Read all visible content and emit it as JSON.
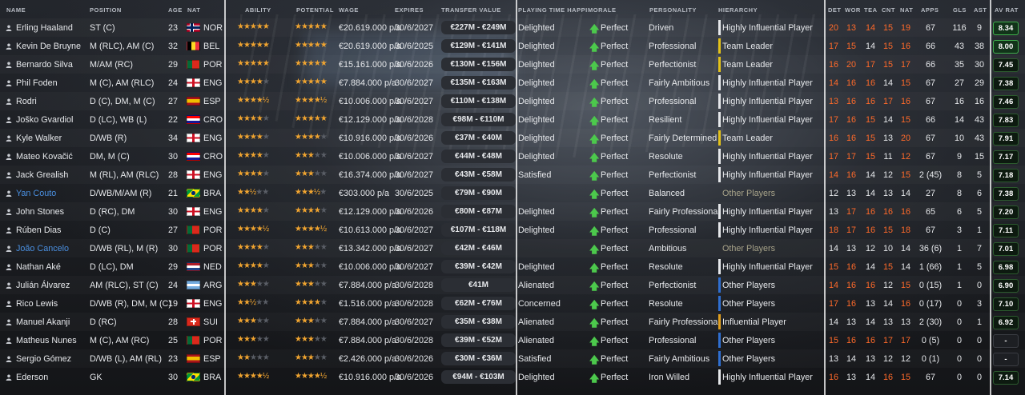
{
  "columns": {
    "name": "NAME",
    "position": "POSITION",
    "age": "AGE",
    "nat": "NAT",
    "ability": "ABILITY",
    "potential": "POTENTIAL",
    "wage": "WAGE",
    "expires": "EXPIRES",
    "transfer_value": "TRANSFER VALUE",
    "playing_time": "PLAYING TIME HAPPI",
    "morale": "MORALE",
    "personality": "PERSONALITY",
    "hierarchy": "HIERARCHY",
    "det": "DET",
    "wor": "WOR",
    "tea": "TEA",
    "cnt": "CNT",
    "nat2": "NAT",
    "apps": "APPS",
    "gls": "GLS",
    "ast": "AST",
    "av_rat": "AV RAT"
  },
  "colors": {
    "accent_star": "#f0a430",
    "attr_high": "#ff6a2a",
    "loan_name": "#4a8fe0",
    "morale_up": "#4cc94c",
    "hier_leader": "#e3c21a",
    "hier_influential": "#e6e8eb",
    "hier_other": "#2f6fd1",
    "hier_fringe": "#e0a020"
  },
  "players": [
    {
      "name": "Erling Haaland",
      "pos": "ST (C)",
      "age": "23",
      "flag": "nor",
      "nat": "NOR",
      "ab": "★★★★★",
      "ab_dim": "",
      "pot": "★★★★★",
      "pot_dim": "",
      "wage": "€20.619.000 p/a",
      "expires": "30/6/2027",
      "tv": "€227M - €249M",
      "pt": "Delighted",
      "morale": "Perfect",
      "personality": "Driven",
      "hier": "Highly Influential Player",
      "hcol": "#e6e8eb",
      "hdim": false,
      "det": "20",
      "wor": "13",
      "tea": "14",
      "cnt": "15",
      "nat2": "19",
      "det_r": true,
      "wor_r": true,
      "tea_r": true,
      "cnt_r": true,
      "nat_r": true,
      "apps": "67",
      "gls": "116",
      "ast": "9",
      "rat": "8.34",
      "hot": true,
      "loan": false
    },
    {
      "name": "Kevin De Bruyne",
      "pos": "M (RLC), AM (C)",
      "age": "32",
      "flag": "bel",
      "nat": "BEL",
      "ab": "★★★★★",
      "ab_dim": "",
      "pot": "★★★★★",
      "pot_dim": "",
      "wage": "€20.619.000 p/a",
      "expires": "30/6/2025",
      "tv": "€129M - €141M",
      "pt": "Delighted",
      "morale": "Perfect",
      "personality": "Professional",
      "hier": "Team Leader",
      "hcol": "#e3c21a",
      "hdim": false,
      "det": "17",
      "wor": "15",
      "tea": "14",
      "cnt": "15",
      "nat2": "16",
      "det_r": true,
      "wor_r": true,
      "tea_r": false,
      "cnt_r": true,
      "nat_r": true,
      "apps": "66",
      "gls": "43",
      "ast": "38",
      "rat": "8.00",
      "hot": true,
      "loan": false
    },
    {
      "name": "Bernardo Silva",
      "pos": "M/AM (RC)",
      "age": "29",
      "flag": "por",
      "nat": "POR",
      "ab": "★★★★★",
      "ab_dim": "",
      "pot": "★★★★★",
      "pot_dim": "",
      "wage": "€15.161.000 p/a",
      "expires": "30/6/2026",
      "tv": "€130M - €156M",
      "pt": "Delighted",
      "morale": "Perfect",
      "personality": "Perfectionist",
      "hier": "Team Leader",
      "hcol": "#e3c21a",
      "hdim": false,
      "det": "16",
      "wor": "20",
      "tea": "17",
      "cnt": "15",
      "nat2": "17",
      "det_r": true,
      "wor_r": true,
      "tea_r": true,
      "cnt_r": true,
      "nat_r": true,
      "apps": "66",
      "gls": "35",
      "ast": "30",
      "rat": "7.45",
      "hot": false,
      "loan": false
    },
    {
      "name": "Phil Foden",
      "pos": "M (C), AM (RLC)",
      "age": "24",
      "flag": "eng",
      "nat": "ENG",
      "ab": "★★★★",
      "ab_dim": "★",
      "pot": "★★★★★",
      "pot_dim": "",
      "wage": "€7.884.000 p/a",
      "expires": "30/6/2027",
      "tv": "€135M - €163M",
      "pt": "Delighted",
      "morale": "Perfect",
      "personality": "Fairly Ambitious",
      "hier": "Highly Influential Player",
      "hcol": "#e6e8eb",
      "hdim": false,
      "det": "14",
      "wor": "16",
      "tea": "16",
      "cnt": "14",
      "nat2": "15",
      "det_r": true,
      "wor_r": true,
      "tea_r": true,
      "cnt_r": false,
      "nat_r": true,
      "apps": "67",
      "gls": "27",
      "ast": "29",
      "rat": "7.38",
      "hot": false,
      "loan": false
    },
    {
      "name": "Rodri",
      "pos": "D (C), DM, M (C)",
      "age": "27",
      "flag": "esp",
      "nat": "ESP",
      "ab": "★★★★½",
      "ab_dim": "",
      "pot": "★★★★½",
      "pot_dim": "",
      "wage": "€10.006.000 p/a",
      "expires": "30/6/2027",
      "tv": "€110M - €138M",
      "pt": "Delighted",
      "morale": "Perfect",
      "personality": "Professional",
      "hier": "Highly Influential Player",
      "hcol": "#e6e8eb",
      "hdim": false,
      "det": "13",
      "wor": "16",
      "tea": "16",
      "cnt": "17",
      "nat2": "16",
      "det_r": true,
      "wor_r": true,
      "tea_r": true,
      "cnt_r": true,
      "nat_r": true,
      "apps": "67",
      "gls": "16",
      "ast": "16",
      "rat": "7.46",
      "hot": false,
      "loan": false
    },
    {
      "name": "Joško Gvardiol",
      "pos": "D (LC), WB (L)",
      "age": "22",
      "flag": "cro",
      "nat": "CRO",
      "ab": "★★★★",
      "ab_dim": "★",
      "pot": "★★★★★",
      "pot_dim": "",
      "wage": "€12.129.000 p/a",
      "expires": "30/6/2028",
      "tv": "€98M - €110M",
      "pt": "Delighted",
      "morale": "Perfect",
      "personality": "Resilient",
      "hier": "Highly Influential Player",
      "hcol": "#e6e8eb",
      "hdim": false,
      "det": "17",
      "wor": "16",
      "tea": "15",
      "cnt": "14",
      "nat2": "15",
      "det_r": true,
      "wor_r": true,
      "tea_r": true,
      "cnt_r": false,
      "nat_r": true,
      "apps": "66",
      "gls": "14",
      "ast": "43",
      "rat": "7.83",
      "hot": false,
      "loan": false
    },
    {
      "name": "Kyle Walker",
      "pos": "D/WB (R)",
      "age": "34",
      "flag": "eng",
      "nat": "ENG",
      "ab": "★★★★",
      "ab_dim": "★",
      "pot": "★★★★",
      "pot_dim": "★",
      "wage": "€10.916.000 p/a",
      "expires": "30/6/2026",
      "tv": "€37M - €40M",
      "pt": "Delighted",
      "morale": "Perfect",
      "personality": "Fairly Determined",
      "hier": "Team Leader",
      "hcol": "#e3c21a",
      "hdim": false,
      "det": "16",
      "wor": "16",
      "tea": "15",
      "cnt": "13",
      "nat2": "20",
      "det_r": true,
      "wor_r": true,
      "tea_r": true,
      "cnt_r": false,
      "nat_r": true,
      "apps": "67",
      "gls": "10",
      "ast": "43",
      "rat": "7.91",
      "hot": false,
      "loan": false
    },
    {
      "name": "Mateo Kovačić",
      "pos": "DM, M (C)",
      "age": "30",
      "flag": "cro",
      "nat": "CRO",
      "ab": "★★★★",
      "ab_dim": "★",
      "pot": "★★★",
      "pot_dim": "★★",
      "wage": "€10.006.000 p/a",
      "expires": "30/6/2027",
      "tv": "€44M - €48M",
      "pt": "Delighted",
      "morale": "Perfect",
      "personality": "Resolute",
      "hier": "Highly Influential Player",
      "hcol": "#e6e8eb",
      "hdim": false,
      "det": "17",
      "wor": "17",
      "tea": "15",
      "cnt": "11",
      "nat2": "12",
      "det_r": true,
      "wor_r": true,
      "tea_r": true,
      "cnt_r": false,
      "nat_r": true,
      "apps": "67",
      "gls": "9",
      "ast": "15",
      "rat": "7.17",
      "hot": false,
      "loan": false
    },
    {
      "name": "Jack Grealish",
      "pos": "M (RL), AM (RLC)",
      "age": "28",
      "flag": "eng",
      "nat": "ENG",
      "ab": "★★★★",
      "ab_dim": "★",
      "pot": "★★★",
      "pot_dim": "★★",
      "wage": "€16.374.000 p/a",
      "expires": "30/6/2027",
      "tv": "€43M - €58M",
      "pt": "Satisfied",
      "morale": "Perfect",
      "personality": "Perfectionist",
      "hier": "Highly Influential Player",
      "hcol": "#e6e8eb",
      "hdim": false,
      "det": "14",
      "wor": "16",
      "tea": "14",
      "cnt": "12",
      "nat2": "15",
      "det_r": true,
      "wor_r": true,
      "tea_r": false,
      "cnt_r": false,
      "nat_r": true,
      "apps": "2 (45)",
      "gls": "8",
      "ast": "5",
      "rat": "7.18",
      "hot": false,
      "loan": false
    },
    {
      "name": "Yan Couto",
      "pos": "D/WB/M/AM (R)",
      "age": "21",
      "flag": "bra",
      "nat": "BRA",
      "ab": "★★½",
      "ab_dim": "★★",
      "pot": "★★★½",
      "pot_dim": "★",
      "wage": "€303.000 p/a",
      "expires": "30/6/2025",
      "tv": "€79M - €90M",
      "pt": "",
      "morale": "Perfect",
      "personality": "Balanced",
      "hier": "Other Players",
      "hcol": "",
      "hdim": true,
      "det": "12",
      "wor": "13",
      "tea": "14",
      "cnt": "13",
      "nat2": "14",
      "det_r": false,
      "wor_r": false,
      "tea_r": false,
      "cnt_r": false,
      "nat_r": false,
      "apps": "27",
      "gls": "8",
      "ast": "6",
      "rat": "7.38",
      "hot": false,
      "loan": true
    },
    {
      "name": "John Stones",
      "pos": "D (RC), DM",
      "age": "30",
      "flag": "eng",
      "nat": "ENG",
      "ab": "★★★★",
      "ab_dim": "★",
      "pot": "★★★★",
      "pot_dim": "★",
      "wage": "€12.129.000 p/a",
      "expires": "30/6/2026",
      "tv": "€80M - €87M",
      "pt": "Delighted",
      "morale": "Perfect",
      "personality": "Fairly Professional",
      "hier": "Highly Influential Player",
      "hcol": "#e6e8eb",
      "hdim": false,
      "det": "13",
      "wor": "17",
      "tea": "16",
      "cnt": "16",
      "nat2": "16",
      "det_r": false,
      "wor_r": true,
      "tea_r": true,
      "cnt_r": true,
      "nat_r": true,
      "apps": "65",
      "gls": "6",
      "ast": "5",
      "rat": "7.20",
      "hot": false,
      "loan": false
    },
    {
      "name": "Rúben Dias",
      "pos": "D (C)",
      "age": "27",
      "flag": "por",
      "nat": "POR",
      "ab": "★★★★½",
      "ab_dim": "",
      "pot": "★★★★½",
      "pot_dim": "",
      "wage": "€10.613.000 p/a",
      "expires": "30/6/2027",
      "tv": "€107M - €118M",
      "pt": "Delighted",
      "morale": "Perfect",
      "personality": "Professional",
      "hier": "Highly Influential Player",
      "hcol": "#e6e8eb",
      "hdim": false,
      "det": "18",
      "wor": "17",
      "tea": "16",
      "cnt": "15",
      "nat2": "18",
      "det_r": true,
      "wor_r": true,
      "tea_r": true,
      "cnt_r": true,
      "nat_r": true,
      "apps": "67",
      "gls": "3",
      "ast": "1",
      "rat": "7.11",
      "hot": false,
      "loan": false
    },
    {
      "name": "João Cancelo",
      "pos": "D/WB (RL), M (R)",
      "age": "30",
      "flag": "por",
      "nat": "POR",
      "ab": "★★★★",
      "ab_dim": "★",
      "pot": "★★★",
      "pot_dim": "★★",
      "wage": "€13.342.000 p/a",
      "expires": "30/6/2027",
      "tv": "€42M - €46M",
      "pt": "",
      "morale": "Perfect",
      "personality": "Ambitious",
      "hier": "Other Players",
      "hcol": "",
      "hdim": true,
      "det": "14",
      "wor": "13",
      "tea": "12",
      "cnt": "10",
      "nat2": "14",
      "det_r": false,
      "wor_r": false,
      "tea_r": false,
      "cnt_r": false,
      "nat_r": false,
      "apps": "36 (6)",
      "gls": "1",
      "ast": "7",
      "rat": "7.01",
      "hot": false,
      "loan": true
    },
    {
      "name": "Nathan Aké",
      "pos": "D (LC), DM",
      "age": "29",
      "flag": "ned",
      "nat": "NED",
      "ab": "★★★★",
      "ab_dim": "★",
      "pot": "★★★",
      "pot_dim": "★★",
      "wage": "€10.006.000 p/a",
      "expires": "30/6/2027",
      "tv": "€39M - €42M",
      "pt": "Delighted",
      "morale": "Perfect",
      "personality": "Resolute",
      "hier": "Highly Influential Player",
      "hcol": "#e6e8eb",
      "hdim": false,
      "det": "15",
      "wor": "16",
      "tea": "14",
      "cnt": "15",
      "nat2": "14",
      "det_r": true,
      "wor_r": true,
      "tea_r": false,
      "cnt_r": true,
      "nat_r": false,
      "apps": "1 (66)",
      "gls": "1",
      "ast": "5",
      "rat": "6.98",
      "hot": false,
      "loan": false
    },
    {
      "name": "Julián Álvarez",
      "pos": "AM (RLC), ST (C)",
      "age": "24",
      "flag": "arg",
      "nat": "ARG",
      "ab": "★★★",
      "ab_dim": "★★",
      "pot": "★★★",
      "pot_dim": "★★",
      "wage": "€7.884.000 p/a",
      "expires": "30/6/2028",
      "tv": "€41M",
      "pt": "Alienated",
      "morale": "Perfect",
      "personality": "Perfectionist",
      "hier": "Other Players",
      "hcol": "#2f6fd1",
      "hdim": false,
      "det": "14",
      "wor": "16",
      "tea": "16",
      "cnt": "12",
      "nat2": "15",
      "det_r": true,
      "wor_r": true,
      "tea_r": true,
      "cnt_r": false,
      "nat_r": true,
      "apps": "0 (15)",
      "gls": "1",
      "ast": "0",
      "rat": "6.90",
      "hot": false,
      "loan": false
    },
    {
      "name": "Rico Lewis",
      "pos": "D/WB (R), DM, M (C)",
      "age": "19",
      "flag": "eng",
      "nat": "ENG",
      "ab": "★★½",
      "ab_dim": "★★",
      "pot": "★★★★",
      "pot_dim": "★",
      "wage": "€1.516.000 p/a",
      "expires": "30/6/2028",
      "tv": "€62M - €76M",
      "pt": "Concerned",
      "morale": "Perfect",
      "personality": "Resolute",
      "hier": "Other Players",
      "hcol": "#2f6fd1",
      "hdim": false,
      "det": "17",
      "wor": "16",
      "tea": "13",
      "cnt": "14",
      "nat2": "16",
      "det_r": true,
      "wor_r": true,
      "tea_r": false,
      "cnt_r": false,
      "nat_r": true,
      "apps": "0 (17)",
      "gls": "0",
      "ast": "3",
      "rat": "7.10",
      "hot": false,
      "loan": false
    },
    {
      "name": "Manuel Akanji",
      "pos": "D (RC)",
      "age": "28",
      "flag": "sui",
      "nat": "SUI",
      "ab": "★★★",
      "ab_dim": "★★",
      "pot": "★★★",
      "pot_dim": "★★",
      "wage": "€7.884.000 p/a",
      "expires": "30/6/2027",
      "tv": "€35M - €38M",
      "pt": "Alienated",
      "morale": "Perfect",
      "personality": "Fairly Professional",
      "hier": "Influential Player",
      "hcol": "#e0a020",
      "hdim": false,
      "det": "14",
      "wor": "13",
      "tea": "14",
      "cnt": "13",
      "nat2": "13",
      "det_r": false,
      "wor_r": false,
      "tea_r": false,
      "cnt_r": false,
      "nat_r": false,
      "apps": "2 (30)",
      "gls": "0",
      "ast": "1",
      "rat": "6.92",
      "hot": false,
      "loan": false
    },
    {
      "name": "Matheus Nunes",
      "pos": "M (C), AM (RC)",
      "age": "25",
      "flag": "por",
      "nat": "POR",
      "ab": "★★★",
      "ab_dim": "★★",
      "pot": "★★★",
      "pot_dim": "★★",
      "wage": "€7.884.000 p/a",
      "expires": "30/6/2028",
      "tv": "€39M - €52M",
      "pt": "Alienated",
      "morale": "Perfect",
      "personality": "Professional",
      "hier": "Other Players",
      "hcol": "#2f6fd1",
      "hdim": false,
      "det": "15",
      "wor": "16",
      "tea": "16",
      "cnt": "17",
      "nat2": "17",
      "det_r": true,
      "wor_r": true,
      "tea_r": true,
      "cnt_r": true,
      "nat_r": true,
      "apps": "0 (5)",
      "gls": "0",
      "ast": "0",
      "rat": "-",
      "hot": false,
      "loan": false
    },
    {
      "name": "Sergio Gómez",
      "pos": "D/WB (L), AM (RL)",
      "age": "23",
      "flag": "esp",
      "nat": "ESP",
      "ab": "★★",
      "ab_dim": "★★★",
      "pot": "★★★",
      "pot_dim": "★★",
      "wage": "€2.426.000 p/a",
      "expires": "30/6/2026",
      "tv": "€30M - €36M",
      "pt": "Satisfied",
      "morale": "Perfect",
      "personality": "Fairly Ambitious",
      "hier": "Other Players",
      "hcol": "#2f6fd1",
      "hdim": false,
      "det": "13",
      "wor": "14",
      "tea": "13",
      "cnt": "12",
      "nat2": "12",
      "det_r": false,
      "wor_r": false,
      "tea_r": false,
      "cnt_r": false,
      "nat_r": false,
      "apps": "0 (1)",
      "gls": "0",
      "ast": "0",
      "rat": "-",
      "hot": false,
      "loan": false
    },
    {
      "name": "Ederson",
      "pos": "GK",
      "age": "30",
      "flag": "bra",
      "nat": "BRA",
      "ab": "★★★★½",
      "ab_dim": "",
      "pot": "★★★★½",
      "pot_dim": "",
      "wage": "€10.916.000 p/a",
      "expires": "30/6/2026",
      "tv": "€94M - €103M",
      "pt": "Delighted",
      "morale": "Perfect",
      "personality": "Iron Willed",
      "hier": "Highly Influential Player",
      "hcol": "#e6e8eb",
      "hdim": false,
      "det": "16",
      "wor": "13",
      "tea": "14",
      "cnt": "16",
      "nat2": "15",
      "det_r": true,
      "wor_r": false,
      "tea_r": false,
      "cnt_r": true,
      "nat_r": true,
      "apps": "67",
      "gls": "0",
      "ast": "0",
      "rat": "7.14",
      "hot": false,
      "loan": false
    }
  ]
}
